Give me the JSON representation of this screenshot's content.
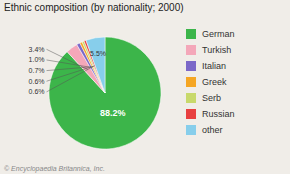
{
  "chart_data": {
    "type": "pie",
    "title": "Ethnic composition (by nationality; 2000)",
    "categories": [
      "German",
      "Turkish",
      "Italian",
      "Greek",
      "Serb",
      "Russian",
      "other"
    ],
    "values": [
      88.2,
      3.4,
      1.0,
      0.7,
      0.6,
      0.6,
      5.5
    ],
    "colors": [
      "#3cb54a",
      "#f4a7b9",
      "#7b68c8",
      "#f5a623",
      "#c8d96b",
      "#e84040",
      "#87ceeb"
    ],
    "data_labels": true,
    "value_labels": [
      "88.2%",
      "3.4%",
      "1.0%",
      "0.7%",
      "0.6%",
      "0.6%",
      "5.5%"
    ],
    "legend": "right",
    "annotations": [
      "© Encyclopaedia Britannica, Inc."
    ]
  }
}
